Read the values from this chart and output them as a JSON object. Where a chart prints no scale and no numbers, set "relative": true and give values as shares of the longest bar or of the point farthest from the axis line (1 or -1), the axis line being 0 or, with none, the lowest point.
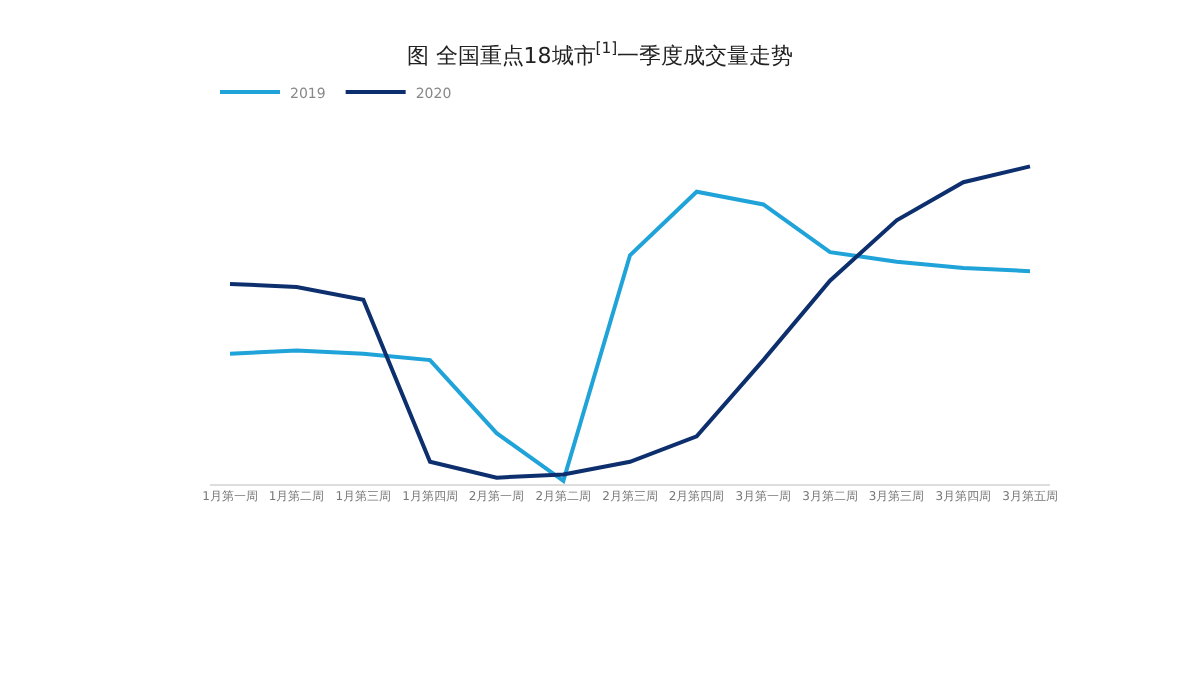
{
  "chart_data": {
    "type": "line",
    "title": "图 全国重点18城市$^{[1]}$一季度成交量走势",
    "relative": true,
    "legend": "top left",
    "marker": "none",
    "categories": [
      "1月第一周",
      "1月第二周",
      "1月第三周",
      "1月第四周",
      "2月第一周",
      "2月第二周",
      "2月第三周",
      "2月第四周",
      "3月第一周",
      "3月第二周",
      "3月第三周",
      "3月第四周",
      "3月第五周"
    ],
    "series": [
      {
        "name": "2019",
        "color": "#1fa3d8",
        "values": [
          0.41,
          0.42,
          0.41,
          0.39,
          0.16,
          0.01,
          0.72,
          0.92,
          0.88,
          0.73,
          0.7,
          0.68,
          0.67
        ]
      },
      {
        "name": "2020",
        "color": "#0d2f6e",
        "values": [
          0.63,
          0.62,
          0.58,
          0.07,
          0.02,
          0.03,
          0.07,
          0.15,
          0.39,
          0.64,
          0.83,
          0.95,
          1
        ]
      }
    ]
  }
}
